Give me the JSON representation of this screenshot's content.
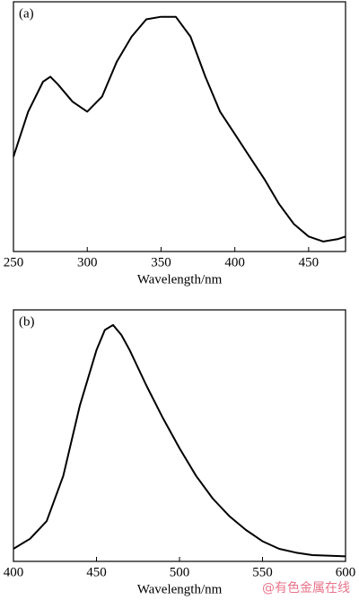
{
  "chart_data": [
    {
      "type": "line",
      "label": "(a)",
      "xlabel": "Wavelength/nm",
      "x": [
        250,
        260,
        270,
        275,
        280,
        290,
        300,
        310,
        320,
        330,
        340,
        350,
        360,
        370,
        380,
        390,
        400,
        410,
        420,
        430,
        440,
        450,
        460,
        470,
        475
      ],
      "values": [
        38,
        56,
        68,
        70,
        67,
        60,
        56,
        62,
        76,
        86,
        93,
        94,
        94,
        86,
        70,
        56,
        47,
        38,
        29,
        19,
        11,
        6,
        4,
        5,
        6
      ],
      "color": "#000000",
      "xlim": [
        250,
        475
      ],
      "ylim": [
        0,
        100
      ],
      "xticks": [
        250,
        300,
        350,
        400,
        450
      ]
    },
    {
      "type": "line",
      "label": "(b)",
      "xlabel": "Wavelength/nm",
      "x": [
        400,
        410,
        420,
        430,
        440,
        450,
        455,
        460,
        465,
        470,
        480,
        490,
        500,
        510,
        520,
        530,
        540,
        550,
        560,
        570,
        580,
        600
      ],
      "values": [
        5,
        9,
        16,
        34,
        62,
        84,
        92,
        94,
        90,
        84,
        70,
        57,
        45,
        34,
        25,
        18,
        12.5,
        8,
        5,
        3.5,
        2.5,
        2
      ],
      "color": "#000000",
      "xlim": [
        400,
        600
      ],
      "ylim": [
        0,
        100
      ],
      "xticks": [
        400,
        450,
        500,
        550,
        600
      ]
    }
  ],
  "watermark": "@有色金属在线"
}
